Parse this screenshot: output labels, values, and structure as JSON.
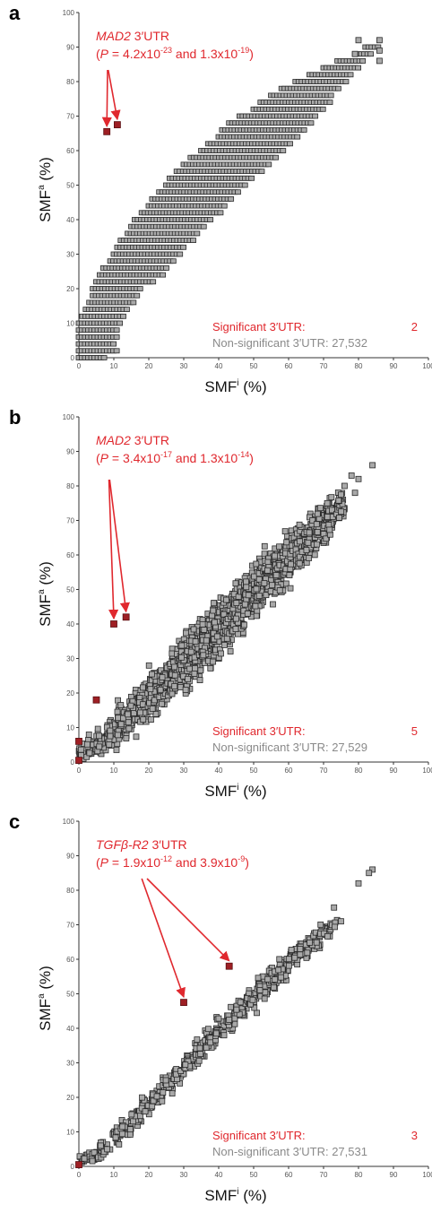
{
  "chart_data": [
    {
      "type": "scatter",
      "panel_label": "a",
      "xlabel": "SMF",
      "xlabel_sup": "i",
      "xlabel_unit": " (%)",
      "ylabel": "SMF",
      "ylabel_sup": "a",
      "ylabel_unit": " (%)",
      "xlim": [
        0,
        100
      ],
      "ylim": [
        0,
        100
      ],
      "ticks": [
        0,
        10,
        20,
        30,
        40,
        50,
        60,
        70,
        80,
        90,
        100
      ],
      "grid": false,
      "annotation": {
        "gene": "MAD2",
        "gene_suffix": " 3′UTR",
        "p_open": "(",
        "p_symbol": "P",
        "p_eq": " = 4.2x10",
        "p1_exp": "-23",
        "p_and": " and 1.3x10",
        "p2_exp": "-19",
        "p_close": ")"
      },
      "legend": {
        "sig_label": "Significant 3′UTR:",
        "sig_count": "2",
        "non_label": "Non-significant 3′UTR: 27,532"
      },
      "significant_points": [
        [
          8,
          65.5
        ],
        [
          11,
          67.5
        ]
      ],
      "background_style": "discrete",
      "background_bands": [
        [
          0,
          0,
          8
        ],
        [
          2,
          0,
          11
        ],
        [
          4,
          0,
          10
        ],
        [
          6,
          0,
          11
        ],
        [
          8,
          0,
          11
        ],
        [
          10,
          0,
          12
        ],
        [
          12,
          1,
          13
        ],
        [
          14,
          2,
          14
        ],
        [
          16,
          3,
          16
        ],
        [
          18,
          4,
          17
        ],
        [
          20,
          4,
          18
        ],
        [
          22,
          5,
          22
        ],
        [
          24,
          6,
          24
        ],
        [
          26,
          7,
          25
        ],
        [
          28,
          9,
          27
        ],
        [
          30,
          10,
          29
        ],
        [
          32,
          11,
          30
        ],
        [
          34,
          12,
          33
        ],
        [
          36,
          14,
          34
        ],
        [
          38,
          15,
          36
        ],
        [
          40,
          16,
          38
        ],
        [
          42,
          18,
          41
        ],
        [
          44,
          20,
          42
        ],
        [
          46,
          21,
          44
        ],
        [
          48,
          23,
          46
        ],
        [
          50,
          25,
          48
        ],
        [
          52,
          26,
          50
        ],
        [
          54,
          28,
          53
        ],
        [
          56,
          30,
          55
        ],
        [
          58,
          32,
          57
        ],
        [
          60,
          35,
          59
        ],
        [
          62,
          37,
          61
        ],
        [
          64,
          40,
          63
        ],
        [
          66,
          41,
          65
        ],
        [
          68,
          43,
          67
        ],
        [
          70,
          46,
          68
        ],
        [
          72,
          50,
          70
        ],
        [
          74,
          52,
          72
        ],
        [
          76,
          55,
          73
        ],
        [
          78,
          58,
          75
        ],
        [
          80,
          62,
          77
        ],
        [
          82,
          66,
          78
        ],
        [
          84,
          70,
          80
        ],
        [
          86,
          74,
          82
        ],
        [
          88,
          79,
          84
        ],
        [
          90,
          82,
          86
        ]
      ],
      "extra_points": [
        [
          86,
          92
        ],
        [
          86,
          89
        ],
        [
          80,
          92
        ],
        [
          79,
          88
        ],
        [
          86,
          86
        ]
      ]
    },
    {
      "type": "scatter",
      "panel_label": "b",
      "xlabel": "SMF",
      "xlabel_sup": "i",
      "xlabel_unit": " (%)",
      "ylabel": "SMF",
      "ylabel_sup": "a",
      "ylabel_unit": " (%)",
      "xlim": [
        0,
        100
      ],
      "ylim": [
        0,
        100
      ],
      "ticks": [
        0,
        10,
        20,
        30,
        40,
        50,
        60,
        70,
        80,
        90,
        100
      ],
      "grid": false,
      "annotation": {
        "gene": "MAD2",
        "gene_suffix": " 3′UTR",
        "p_open": "(",
        "p_symbol": "P",
        "p_eq": " = 3.4x10",
        "p1_exp": "-17",
        "p_and": " and 1.3x10",
        "p2_exp": "-14",
        "p_close": ")"
      },
      "legend": {
        "sig_label": "Significant 3′UTR:",
        "sig_count": "5",
        "non_label": "Non-significant 3′UTR: 27,529"
      },
      "significant_points": [
        [
          10,
          40
        ],
        [
          13.5,
          42
        ],
        [
          5,
          18
        ],
        [
          0,
          6
        ],
        [
          0,
          0.5
        ]
      ],
      "background_style": "cloud",
      "background_bands": [
        [
          0,
          0,
          6
        ],
        [
          2,
          0,
          9
        ],
        [
          5,
          1,
          12
        ],
        [
          8,
          2,
          15
        ],
        [
          11,
          4,
          19
        ],
        [
          14,
          6,
          22
        ],
        [
          17,
          8,
          26
        ],
        [
          20,
          11,
          30
        ],
        [
          23,
          13,
          33
        ],
        [
          26,
          16,
          37
        ],
        [
          29,
          18,
          40
        ],
        [
          32,
          21,
          43
        ],
        [
          35,
          24,
          47
        ],
        [
          38,
          27,
          50
        ],
        [
          41,
          30,
          53
        ],
        [
          44,
          33,
          56
        ],
        [
          47,
          36,
          59
        ],
        [
          50,
          39,
          62
        ],
        [
          53,
          43,
          65
        ],
        [
          56,
          46,
          68
        ],
        [
          59,
          49,
          70
        ],
        [
          62,
          53,
          72
        ],
        [
          65,
          56,
          75
        ],
        [
          68,
          60,
          77
        ],
        [
          71,
          64,
          79
        ],
        [
          74,
          68,
          80
        ]
      ],
      "extra_points": [
        [
          84,
          86
        ],
        [
          78,
          83
        ],
        [
          80,
          82
        ],
        [
          76,
          80
        ],
        [
          79,
          78
        ]
      ]
    },
    {
      "type": "scatter",
      "panel_label": "c",
      "xlabel": "SMF",
      "xlabel_sup": "i",
      "xlabel_unit": " (%)",
      "ylabel": "SMF",
      "ylabel_sup": "a",
      "ylabel_unit": " (%)",
      "xlim": [
        0,
        100
      ],
      "ylim": [
        0,
        100
      ],
      "ticks": [
        0,
        10,
        20,
        30,
        40,
        50,
        60,
        70,
        80,
        90,
        100
      ],
      "grid": false,
      "annotation": {
        "gene": "TGFβ-R2",
        "gene_suffix": " 3′UTR",
        "p_open": "(",
        "p_symbol": "P",
        "p_eq": " = 1.9x10",
        "p1_exp": "-12",
        "p_and": " and 3.9x10",
        "p2_exp": "-9",
        "p_close": ")"
      },
      "legend": {
        "sig_label": "Significant 3′UTR:",
        "sig_count": "3",
        "non_label": "Non-significant 3′UTR: 27,531"
      },
      "significant_points": [
        [
          30,
          47.5
        ],
        [
          43,
          58
        ],
        [
          0,
          0.5
        ]
      ],
      "background_style": "cloud",
      "background_bands": [
        [
          0,
          0,
          4
        ],
        [
          3,
          0,
          6
        ],
        [
          6,
          2,
          9
        ],
        [
          9,
          5,
          12
        ],
        [
          12,
          8,
          15
        ],
        [
          15,
          11,
          18
        ],
        [
          18,
          14,
          21
        ],
        [
          21,
          17,
          24
        ],
        [
          24,
          20,
          27
        ],
        [
          27,
          23,
          30
        ],
        [
          30,
          26,
          34
        ],
        [
          33,
          29,
          38
        ],
        [
          36,
          32,
          41
        ],
        [
          39,
          35,
          44
        ],
        [
          42,
          38,
          47
        ],
        [
          45,
          41,
          50
        ],
        [
          48,
          44,
          53
        ],
        [
          51,
          47,
          56
        ],
        [
          54,
          50,
          59
        ],
        [
          57,
          53,
          62
        ],
        [
          60,
          56,
          65
        ],
        [
          63,
          59,
          67
        ],
        [
          66,
          62,
          69
        ],
        [
          69,
          65,
          71
        ],
        [
          72,
          68,
          72
        ]
      ],
      "extra_points": [
        [
          84,
          86
        ],
        [
          83,
          85
        ],
        [
          80,
          82
        ],
        [
          73,
          75
        ],
        [
          75,
          71
        ]
      ]
    }
  ],
  "colors": {
    "marker_fill": "#a9a9a9",
    "marker_edge": "#2a2a2a",
    "significant_fill": "#9e1f24",
    "annotation_red": "#e0282e",
    "nonsig_gray": "#8a8a8a"
  }
}
